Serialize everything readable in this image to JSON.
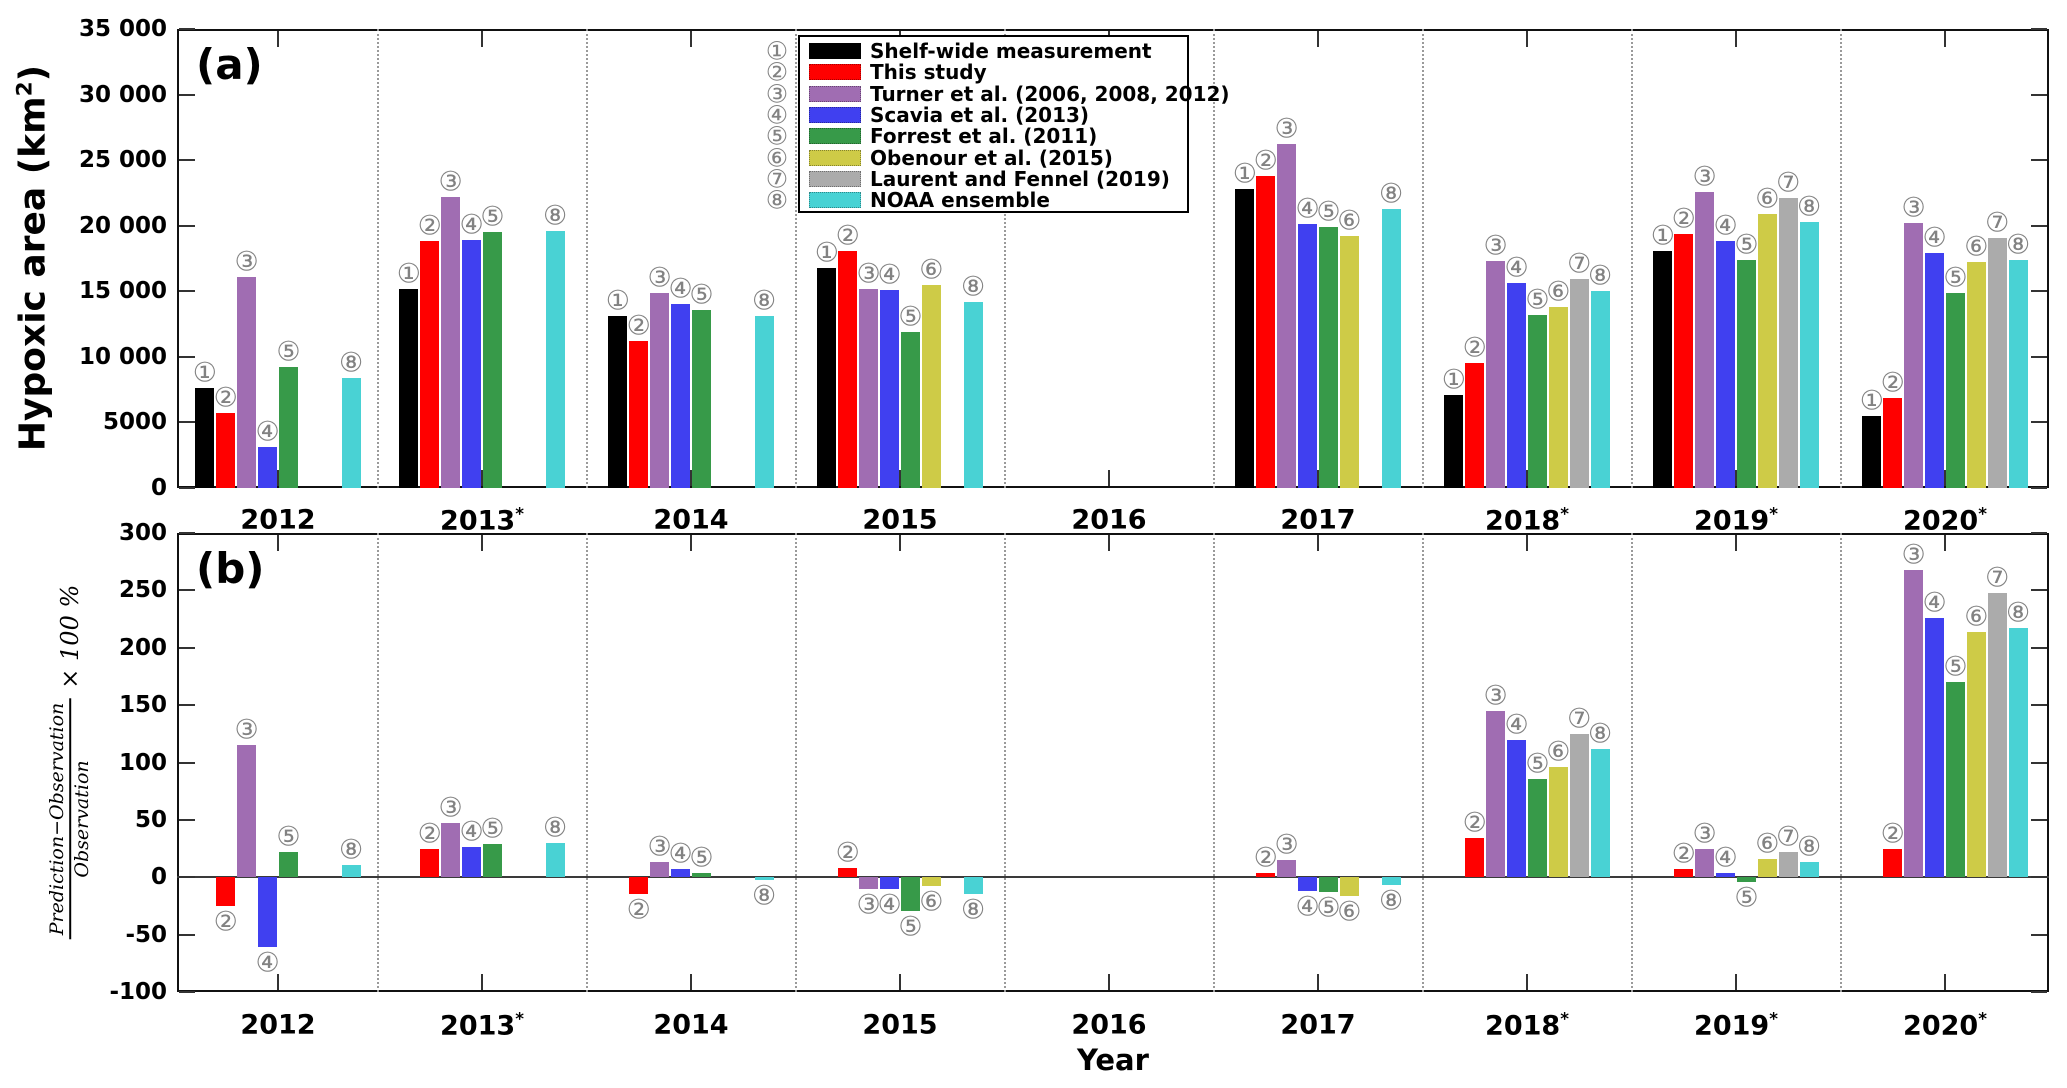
{
  "figure": {
    "panel_a_letter": "(a)",
    "panel_b_letter": "(b)",
    "ylabel_a": {
      "pre": "Hypoxic area (km",
      "sup": "2",
      "post": ")"
    },
    "ylabel_b": {
      "numerator": "Prediction−Observation",
      "denominator": "Observation",
      "suffix": "× 100 %"
    },
    "xlabel": "Year"
  },
  "legend": {
    "position": "top-center of panel a",
    "entries": [
      {
        "num": "①",
        "label": "Shelf-wide measurement",
        "color": "#000000"
      },
      {
        "num": "②",
        "label": "This study",
        "color": "#FF0000"
      },
      {
        "num": "③",
        "label": "Turner et al. (2006, 2008, 2012)",
        "color": "#A06DB2"
      },
      {
        "num": "④",
        "label": "Scavia et al. (2013)",
        "color": "#4040F0"
      },
      {
        "num": "⑤",
        "label": "Forrest et al. (2011)",
        "color": "#379A49"
      },
      {
        "num": "⑥",
        "label": "Obenour et al. (2015)",
        "color": "#CECB47"
      },
      {
        "num": "⑦",
        "label": "Laurent and Fennel (2019)",
        "color": "#ABABAB"
      },
      {
        "num": "⑧",
        "label": "NOAA ensemble",
        "color": "#49D2D4"
      }
    ]
  },
  "chart_data": [
    {
      "type": "bar",
      "panel": "a",
      "ylabel": "Hypoxic area (km2)",
      "xlabel": "Year",
      "ylim": [
        0,
        35000
      ],
      "grid": false,
      "note": "null = no bar for that series/year; starred years marked with asterisk",
      "yticks": [
        {
          "v": 35000,
          "label": "35 000"
        },
        {
          "v": 30000,
          "label": "30 000"
        },
        {
          "v": 25000,
          "label": "25 000"
        },
        {
          "v": 20000,
          "label": "20 000"
        },
        {
          "v": 15000,
          "label": "15 000"
        },
        {
          "v": 10000,
          "label": "10 000"
        },
        {
          "v": 5000,
          "label": "5000"
        },
        {
          "v": 0,
          "label": "0"
        }
      ],
      "categories": [
        {
          "year": "2012",
          "star": false
        },
        {
          "year": "2013",
          "star": true
        },
        {
          "year": "2014",
          "star": false
        },
        {
          "year": "2015",
          "star": false
        },
        {
          "year": "2016",
          "star": false
        },
        {
          "year": "2017",
          "star": false
        },
        {
          "year": "2018",
          "star": true
        },
        {
          "year": "2019",
          "star": true
        },
        {
          "year": "2020",
          "star": true
        }
      ],
      "series": [
        {
          "id": 1,
          "badge": "①",
          "name": "Shelf-wide measurement",
          "color": "#000000",
          "values": [
            7600,
            15200,
            13100,
            16800,
            null,
            22800,
            7100,
            18100,
            5500
          ]
        },
        {
          "id": 2,
          "badge": "②",
          "name": "This study",
          "color": "#FF0000",
          "values": [
            5700,
            18800,
            11200,
            18100,
            null,
            23800,
            9500,
            19400,
            6900
          ]
        },
        {
          "id": 3,
          "badge": "③",
          "name": "Turner et al. (2006, 2008, 2012)",
          "color": "#A06DB2",
          "values": [
            16100,
            22200,
            14900,
            15200,
            null,
            26200,
            17300,
            22600,
            20200
          ]
        },
        {
          "id": 4,
          "badge": "④",
          "name": "Scavia et al. (2013)",
          "color": "#4040F0",
          "values": [
            3100,
            18900,
            14000,
            15100,
            null,
            20100,
            15600,
            18800,
            17900
          ]
        },
        {
          "id": 5,
          "badge": "⑤",
          "name": "Forrest et al. (2011)",
          "color": "#379A49",
          "values": [
            9200,
            19500,
            13600,
            11900,
            null,
            19900,
            13200,
            17400,
            14900
          ]
        },
        {
          "id": 6,
          "badge": "⑥",
          "name": "Obenour et al. (2015)",
          "color": "#CECB47",
          "values": [
            null,
            null,
            null,
            15500,
            null,
            19200,
            13800,
            20900,
            17200
          ]
        },
        {
          "id": 7,
          "badge": "⑦",
          "name": "Laurent and Fennel (2019)",
          "color": "#ABABAB",
          "values": [
            null,
            null,
            null,
            null,
            null,
            null,
            15900,
            22100,
            19100
          ]
        },
        {
          "id": 8,
          "badge": "⑧",
          "name": "NOAA ensemble",
          "color": "#49D2D4",
          "values": [
            8400,
            19600,
            13100,
            14200,
            null,
            21300,
            15000,
            20300,
            17400
          ]
        }
      ]
    },
    {
      "type": "bar",
      "panel": "b",
      "ylabel": "(Prediction−Observation)/Observation × 100 %",
      "xlabel": "Year",
      "ylim": [
        -100,
        300
      ],
      "grid": false,
      "yticks": [
        {
          "v": 300,
          "label": "300"
        },
        {
          "v": 250,
          "label": "250"
        },
        {
          "v": 200,
          "label": "200"
        },
        {
          "v": 150,
          "label": "150"
        },
        {
          "v": 100,
          "label": "100"
        },
        {
          "v": 50,
          "label": "50"
        },
        {
          "v": 0,
          "label": "0"
        },
        {
          "v": -50,
          "label": "-50"
        },
        {
          "v": -100,
          "label": "-100"
        }
      ],
      "categories": [
        {
          "year": "2012",
          "star": false
        },
        {
          "year": "2013",
          "star": true
        },
        {
          "year": "2014",
          "star": false
        },
        {
          "year": "2015",
          "star": false
        },
        {
          "year": "2016",
          "star": false
        },
        {
          "year": "2017",
          "star": false
        },
        {
          "year": "2018",
          "star": true
        },
        {
          "year": "2019",
          "star": true
        },
        {
          "year": "2020",
          "star": true
        }
      ],
      "series": [
        {
          "id": 2,
          "badge": "②",
          "name": "This study",
          "color": "#FF0000",
          "values": [
            -25,
            25,
            -15,
            8,
            null,
            4,
            34,
            7,
            25
          ]
        },
        {
          "id": 3,
          "badge": "③",
          "name": "Turner et al. (2006, 2008, 2012)",
          "color": "#A06DB2",
          "values": [
            115,
            47,
            13,
            -10,
            null,
            15,
            145,
            25,
            268
          ]
        },
        {
          "id": 4,
          "badge": "④",
          "name": "Scavia et al. (2013)",
          "color": "#4040F0",
          "values": [
            -61,
            26,
            7,
            -10,
            null,
            -12,
            120,
            4,
            226
          ]
        },
        {
          "id": 5,
          "badge": "⑤",
          "name": "Forrest et al. (2011)",
          "color": "#379A49",
          "values": [
            22,
            29,
            4,
            -29,
            null,
            -13,
            86,
            -4,
            170
          ]
        },
        {
          "id": 6,
          "badge": "⑥",
          "name": "Obenour et al. (2015)",
          "color": "#CECB47",
          "values": [
            null,
            null,
            null,
            -8,
            null,
            -16,
            96,
            16,
            214
          ]
        },
        {
          "id": 7,
          "badge": "⑦",
          "name": "Laurent and Fennel (2019)",
          "color": "#ABABAB",
          "values": [
            null,
            null,
            null,
            null,
            null,
            null,
            125,
            22,
            248
          ]
        },
        {
          "id": 8,
          "badge": "⑧",
          "name": "NOAA ensemble",
          "color": "#49D2D4",
          "values": [
            11,
            30,
            -2,
            -15,
            null,
            -7,
            112,
            13,
            217
          ]
        }
      ]
    }
  ]
}
